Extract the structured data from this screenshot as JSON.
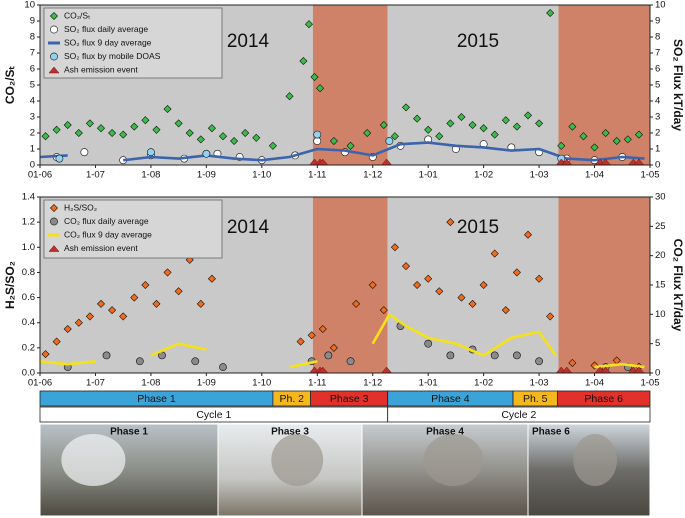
{
  "chart_data": [
    {
      "type": "scatter",
      "ylabel": "CO₂/Sₜ",
      "y2label": "SO₂ Flux kT/day",
      "annotations": [
        "2014",
        "2015"
      ],
      "xlim": [
        0,
        11
      ],
      "xticks": [
        {
          "value": 0,
          "label": "01-06"
        },
        {
          "value": 1,
          "label": "1-07"
        },
        {
          "value": 2,
          "label": "1-08"
        },
        {
          "value": 3,
          "label": "1-09"
        },
        {
          "value": 4,
          "label": "1-10"
        },
        {
          "value": 5,
          "label": "1-11"
        },
        {
          "value": 6,
          "label": "1-12"
        },
        {
          "value": 7,
          "label": "1-01"
        },
        {
          "value": 8,
          "label": "1-02"
        },
        {
          "value": 9,
          "label": "1-03"
        },
        {
          "value": 10,
          "label": "1-04"
        },
        {
          "value": 11,
          "label": "1-05"
        }
      ],
      "ylim": [
        0,
        10
      ],
      "yticks": [
        0,
        1,
        2,
        3,
        4,
        5,
        6,
        7,
        8,
        9,
        10
      ],
      "y2lim": [
        0,
        10
      ],
      "y2ticks": [
        0,
        1,
        2,
        3,
        4,
        5,
        6,
        7,
        8,
        9,
        10
      ],
      "shading": [
        {
          "start": 0,
          "end": 4.92,
          "color": "#c9c9c9"
        },
        {
          "start": 4.92,
          "end": 6.27,
          "color": "#d08269"
        },
        {
          "start": 6.27,
          "end": 9.35,
          "color": "#c9c9c9"
        },
        {
          "start": 9.35,
          "end": 11,
          "color": "#d08269"
        }
      ],
      "series": [
        {
          "name": "CO₂/Sₜ",
          "marker": "diamond",
          "color": "#3dbb4a",
          "x": [
            0.1,
            0.3,
            0.5,
            0.7,
            0.9,
            1.1,
            1.3,
            1.5,
            1.7,
            1.9,
            2.1,
            2.3,
            2.5,
            2.7,
            2.9,
            3.1,
            3.3,
            3.5,
            3.7,
            3.9,
            4.2,
            4.5,
            4.75,
            4.85,
            4.95,
            5.05,
            5.3,
            5.6,
            5.9,
            6.2,
            6.4,
            6.6,
            6.8,
            7.0,
            7.2,
            7.4,
            7.6,
            7.8,
            8.0,
            8.2,
            8.4,
            8.6,
            8.8,
            9.0,
            9.2,
            9.4,
            9.6,
            9.8,
            10.0,
            10.2,
            10.4,
            10.6,
            10.8
          ],
          "values": [
            1.8,
            2.2,
            2.5,
            2.0,
            2.6,
            2.3,
            2.0,
            1.9,
            2.4,
            2.8,
            2.2,
            3.5,
            2.6,
            2.0,
            1.6,
            2.3,
            1.8,
            1.5,
            2.0,
            1.7,
            1.2,
            4.3,
            6.5,
            8.8,
            5.5,
            4.8,
            1.5,
            1.2,
            2.0,
            2.5,
            1.8,
            3.6,
            2.9,
            2.2,
            1.8,
            2.6,
            3.0,
            2.5,
            2.3,
            1.9,
            2.8,
            2.4,
            3.1,
            2.6,
            9.5,
            1.2,
            2.4,
            1.8,
            1.1,
            2.0,
            1.5,
            1.6,
            1.9
          ]
        },
        {
          "name": "SO₂ flux daily average",
          "marker": "circle",
          "color": "#ffffff",
          "axis": "y2",
          "x": [
            0.3,
            0.8,
            1.5,
            2.0,
            2.6,
            3.2,
            3.6,
            4.0,
            4.6,
            5.0,
            5.5,
            6.0,
            6.5,
            7.0,
            7.5,
            8.0,
            8.5,
            9.0,
            9.5,
            10.0,
            10.5
          ],
          "values": [
            0.5,
            0.8,
            0.3,
            0.6,
            0.4,
            0.7,
            0.5,
            0.3,
            0.6,
            1.5,
            0.8,
            0.5,
            1.2,
            1.6,
            1.0,
            1.3,
            1.1,
            0.8,
            0.4,
            0.3,
            0.5
          ]
        },
        {
          "name": "SO₂ flux 9 day average",
          "marker": "line",
          "color": "#3b64ad",
          "axis": "y2",
          "x": [
            0,
            0.5,
            1.0,
            1.5,
            2.0,
            2.5,
            3.0,
            3.5,
            4.0,
            4.5,
            5.0,
            5.5,
            6.0,
            6.5,
            7.0,
            7.5,
            8.0,
            8.5,
            9.0,
            9.5,
            10.0,
            10.5,
            10.9
          ],
          "values": [
            0.5,
            0.6,
            null,
            0.3,
            0.5,
            0.4,
            0.6,
            0.4,
            0.3,
            0.5,
            1.0,
            0.9,
            0.6,
            1.3,
            1.4,
            1.2,
            1.1,
            0.9,
            1.0,
            0.4,
            0.3,
            0.5,
            0.4
          ]
        },
        {
          "name": "SO₂ flux by mobile DOAS",
          "marker": "circle",
          "color": "#8fd3f0",
          "axis": "y2",
          "x": [
            0.35,
            2.0,
            3.0,
            5.0,
            6.3,
            9.4
          ],
          "values": [
            0.4,
            0.8,
            0.7,
            1.9,
            1.5,
            0.4
          ]
        },
        {
          "name": "Ash emission event",
          "marker": "triangle",
          "color": "#c0302a",
          "x": [
            4.95,
            5.05,
            5.1,
            6.25,
            9.4,
            9.5,
            10.1,
            10.2,
            10.7,
            10.8
          ],
          "values": [
            0,
            0,
            0,
            0,
            0,
            0,
            0,
            0,
            0,
            0
          ]
        }
      ]
    },
    {
      "type": "scatter",
      "ylabel": "H₂S/SO₂",
      "y2label": "CO₂ Flux kT/day",
      "annotations": [
        "2014",
        "2015"
      ],
      "xlim": [
        0,
        11
      ],
      "xticks": [
        {
          "value": 0,
          "label": "01-06"
        },
        {
          "value": 1,
          "label": "1-07"
        },
        {
          "value": 2,
          "label": "1-08"
        },
        {
          "value": 3,
          "label": "1-09"
        },
        {
          "value": 4,
          "label": "1-10"
        },
        {
          "value": 5,
          "label": "1-11"
        },
        {
          "value": 6,
          "label": "1-12"
        },
        {
          "value": 7,
          "label": "1-01"
        },
        {
          "value": 8,
          "label": "1-02"
        },
        {
          "value": 9,
          "label": "1-03"
        },
        {
          "value": 10,
          "label": "1-04"
        },
        {
          "value": 11,
          "label": "1-05"
        }
      ],
      "ylim": [
        0,
        1.4
      ],
      "yticks": [
        {
          "value": 0,
          "label": "0.0"
        },
        {
          "value": 0.2,
          "label": "0.2"
        },
        {
          "value": 0.4,
          "label": "0.4"
        },
        {
          "value": 0.6,
          "label": "0.6"
        },
        {
          "value": 0.8,
          "label": "0.8"
        },
        {
          "value": 1,
          "label": "1.0"
        },
        {
          "value": 1.2,
          "label": "1.2"
        },
        {
          "value": 1.4,
          "label": "1.4"
        }
      ],
      "y2lim": [
        0,
        30
      ],
      "y2ticks": [
        0,
        5,
        10,
        15,
        20,
        25,
        30
      ],
      "shading": [
        {
          "start": 0,
          "end": 4.92,
          "color": "#c9c9c9"
        },
        {
          "start": 4.92,
          "end": 6.27,
          "color": "#d08269"
        },
        {
          "start": 6.27,
          "end": 9.35,
          "color": "#c9c9c9"
        },
        {
          "start": 9.35,
          "end": 11,
          "color": "#d08269"
        }
      ],
      "series": [
        {
          "name": "H₂S/SO₂",
          "marker": "diamond",
          "color": "#f26b1d",
          "x": [
            0.1,
            0.3,
            0.5,
            0.7,
            0.9,
            1.1,
            1.3,
            1.5,
            1.7,
            1.9,
            2.1,
            2.3,
            2.5,
            2.7,
            2.9,
            3.1,
            4.7,
            4.9,
            5.1,
            5.3,
            5.7,
            6.0,
            6.2,
            6.4,
            6.6,
            6.8,
            7.0,
            7.2,
            7.4,
            7.6,
            7.8,
            8.0,
            8.2,
            8.4,
            8.6,
            8.8,
            9.0,
            9.2,
            9.6,
            10.0,
            10.4,
            10.8
          ],
          "values": [
            0.15,
            0.25,
            0.35,
            0.4,
            0.45,
            0.55,
            0.5,
            0.45,
            0.6,
            0.7,
            0.55,
            0.8,
            0.65,
            0.9,
            0.55,
            0.75,
            0.25,
            0.3,
            0.35,
            0.2,
            0.55,
            0.7,
            0.5,
            1.0,
            0.85,
            0.7,
            0.75,
            0.65,
            1.2,
            0.6,
            0.55,
            0.7,
            0.95,
            0.5,
            0.8,
            1.1,
            0.75,
            0.45,
            0.08,
            0.06,
            0.1,
            0.05
          ]
        },
        {
          "name": "CO₂ flux daily average",
          "marker": "circle",
          "color": "#8a8a8a",
          "axis": "y2",
          "x": [
            0.5,
            1.2,
            1.8,
            2.2,
            2.8,
            3.3,
            4.9,
            5.2,
            5.6,
            6.5,
            7.0,
            7.4,
            7.8,
            8.2,
            8.6,
            9.0,
            10.2,
            10.6
          ],
          "values": [
            1,
            3,
            2,
            3,
            2,
            1,
            2,
            3,
            2,
            8,
            5,
            3,
            4,
            3,
            3,
            2,
            1,
            1
          ]
        },
        {
          "name": "CO₂ flux 9 day average",
          "marker": "line",
          "color": "#f5e11a",
          "axis": "y2",
          "x": [
            0,
            0.5,
            1.0,
            1.5,
            2.0,
            2.5,
            3.0,
            3.5,
            4.5,
            5.0,
            5.5,
            6.0,
            6.3,
            6.6,
            7.0,
            7.5,
            8.0,
            8.5,
            9.0,
            9.3,
            9.6,
            10.0,
            10.5,
            10.9
          ],
          "values": [
            2,
            1.5,
            2,
            null,
            3,
            5,
            4,
            null,
            1,
            2,
            null,
            5,
            10,
            8,
            6,
            5,
            3,
            6,
            7,
            3,
            null,
            1,
            1.5,
            1
          ]
        },
        {
          "name": "Ash emission event",
          "marker": "triangle",
          "color": "#c0302a",
          "x": [
            4.95,
            5.05,
            5.1,
            6.25,
            9.4,
            9.5,
            10.1,
            10.2,
            10.7,
            10.8
          ],
          "values": [
            0,
            0,
            0,
            0,
            0,
            0,
            0,
            0,
            0,
            0
          ]
        }
      ]
    }
  ],
  "timeline": {
    "phases": [
      {
        "label": "Phase 1",
        "start": 0,
        "end": 4.2,
        "color": "#3aa3d8"
      },
      {
        "label": "Ph. 2",
        "start": 4.2,
        "end": 4.88,
        "color": "#f4b81c"
      },
      {
        "label": "Phase 3",
        "start": 4.88,
        "end": 6.27,
        "color": "#e2302a"
      },
      {
        "label": "Phase 4",
        "start": 6.27,
        "end": 8.53,
        "color": "#3aa3d8"
      },
      {
        "label": "Ph. 5",
        "start": 8.53,
        "end": 9.33,
        "color": "#f4b81c"
      },
      {
        "label": "Phase 6",
        "start": 9.33,
        "end": 11,
        "color": "#e2302a"
      }
    ],
    "cycles": [
      {
        "label": "Cycle 1",
        "start": 0,
        "end": 6.27
      },
      {
        "label": "Cycle 2",
        "start": 6.27,
        "end": 11
      }
    ]
  },
  "photos": [
    {
      "label": "Phase 1"
    },
    {
      "label": "Phase 3"
    },
    {
      "label": "Phase 4"
    },
    {
      "label": "Phase 6"
    }
  ]
}
